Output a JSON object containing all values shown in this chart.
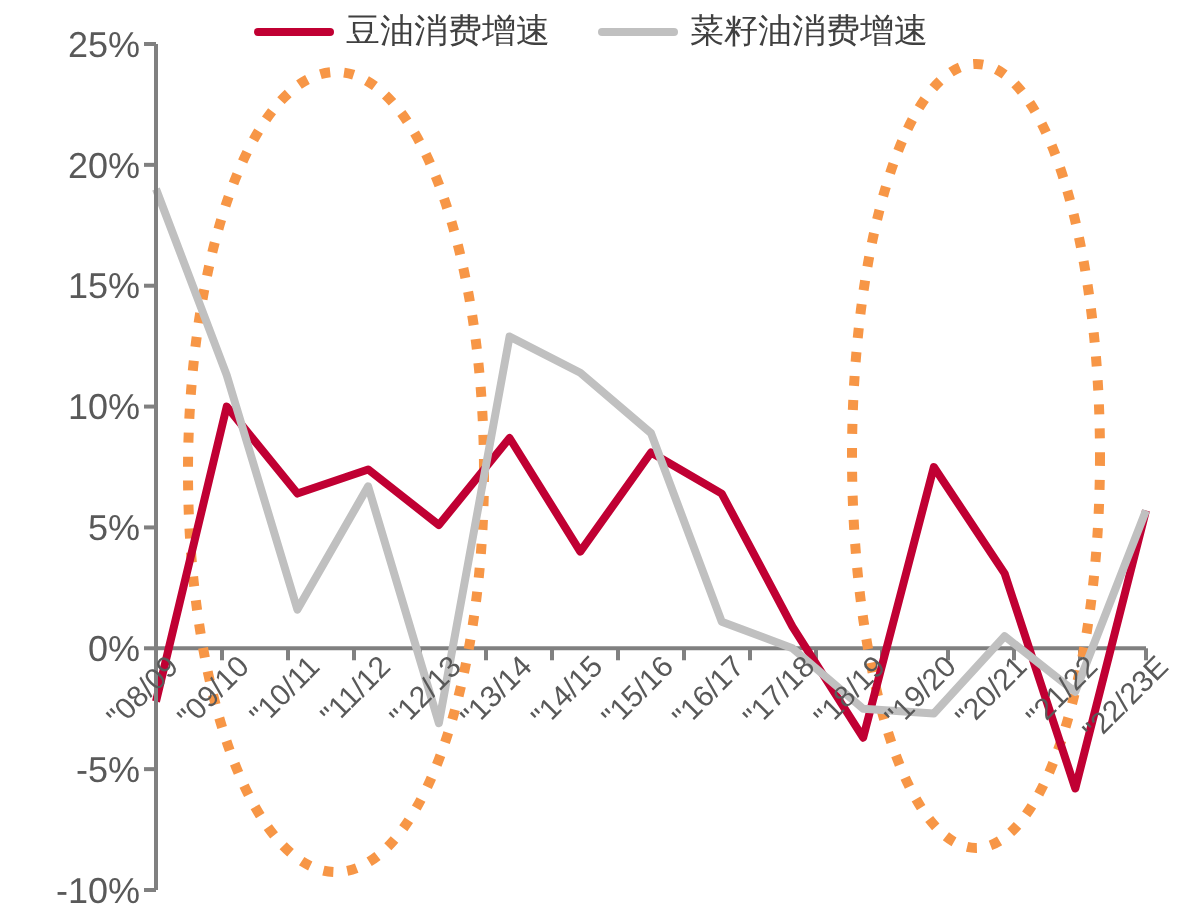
{
  "chart_data": {
    "type": "line",
    "categories": [
      "\"08/09",
      "\"09/10",
      "\"10/11",
      "\"11/12",
      "\"12/13",
      "\"13/14",
      "\"14/15",
      "\"15/16",
      "\"16/17",
      "\"17/18",
      "\"18/19",
      "\"19/20",
      "\"20/21",
      "\"21/22",
      "\"22/23E"
    ],
    "series": [
      {
        "name": "豆油消费增速",
        "color": "#c00033",
        "values": [
          -2.2,
          10.0,
          6.4,
          7.4,
          5.1,
          8.7,
          4.0,
          8.1,
          6.4,
          0.9,
          -3.7,
          7.5,
          3.1,
          -5.8,
          5.7
        ]
      },
      {
        "name": "菜籽油消费增速",
        "color": "#c0c0c0",
        "values": [
          19.0,
          11.3,
          1.6,
          6.7,
          -3.1,
          12.9,
          11.4,
          8.9,
          1.1,
          0.0,
          -2.5,
          -2.7,
          0.5,
          -1.8,
          5.7
        ]
      }
    ],
    "ylim": [
      -10,
      25
    ],
    "yticks": [
      {
        "value": -10,
        "label": "-10%"
      },
      {
        "value": -5,
        "label": "-5%"
      },
      {
        "value": 0,
        "label": "0%"
      },
      {
        "value": 5,
        "label": "5%"
      },
      {
        "value": 10,
        "label": "10%"
      },
      {
        "value": 15,
        "label": "15%"
      },
      {
        "value": 20,
        "label": "20%"
      },
      {
        "value": 25,
        "label": "25%"
      }
    ],
    "grid": false,
    "legend": "top",
    "marker": "none",
    "line_style": "solid"
  }
}
